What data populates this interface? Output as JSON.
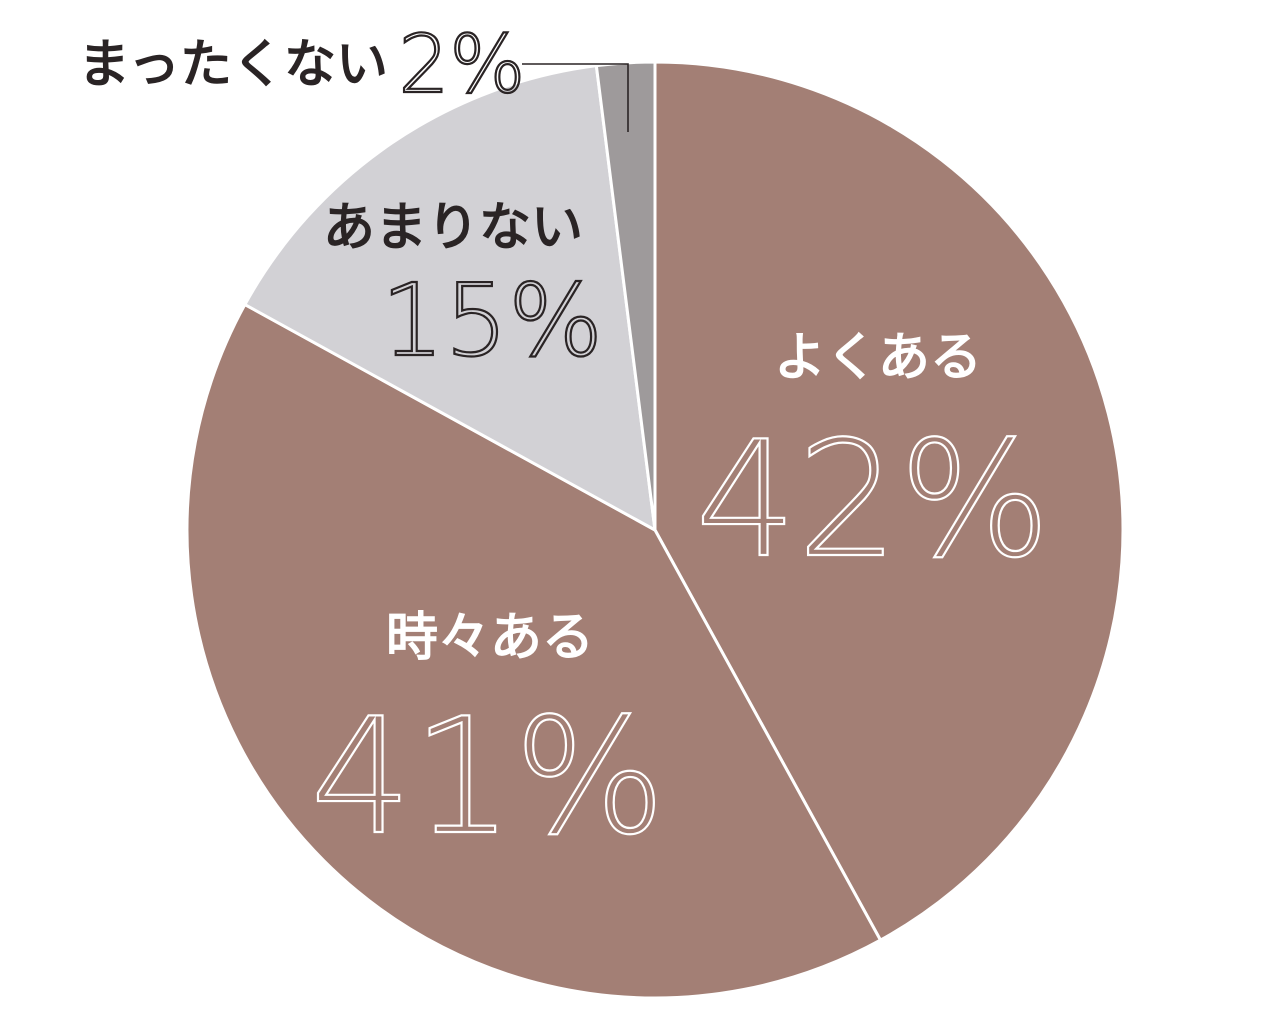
{
  "chart_data": {
    "type": "pie",
    "start_angle_deg": 0,
    "direction": "clockwise",
    "slices": [
      {
        "label": "よくある",
        "percent_label": "42%",
        "value": 42,
        "color": "#a37f75",
        "label_color": "#ffffff"
      },
      {
        "label": "時々ある",
        "percent_label": "41%",
        "value": 41,
        "color": "#a37f75",
        "label_color": "#ffffff"
      },
      {
        "label": "あまりない",
        "percent_label": "15%",
        "value": 15,
        "color": "#d2d1d5",
        "label_color": "#2a2425"
      },
      {
        "label": "まったくない",
        "percent_label": "2%",
        "value": 2,
        "color": "#9e9a9b",
        "label_color": "#2a2425"
      }
    ],
    "separator_color": "#ffffff",
    "leader_line_color": "#2a2425"
  }
}
